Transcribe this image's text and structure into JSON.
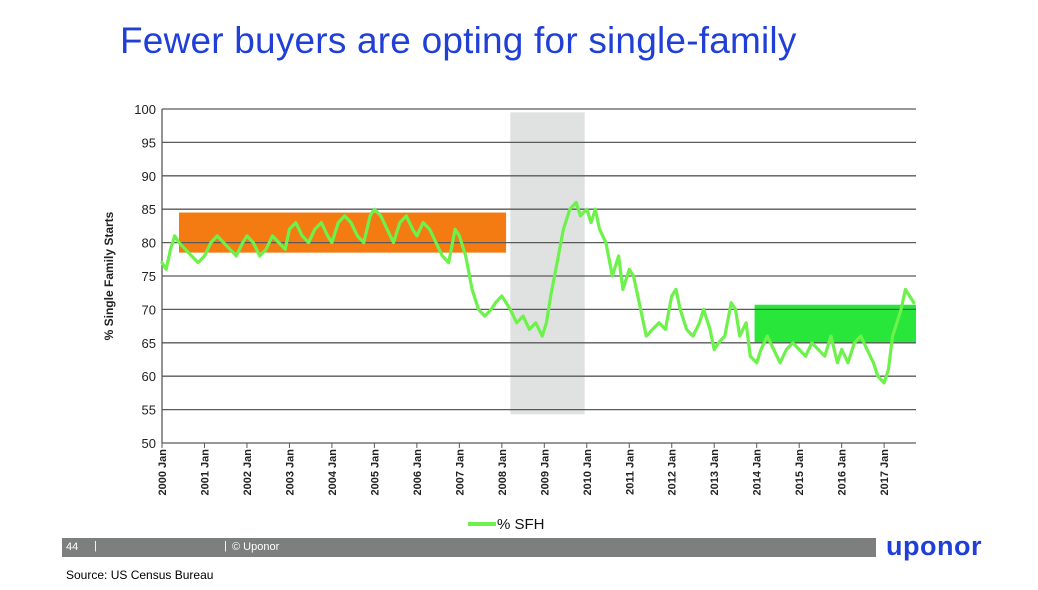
{
  "slide": {
    "title": "Fewer buyers are opting for single-family",
    "page_number": "44",
    "separator": "|",
    "copyright": "© Uponor",
    "logo_text": "uponor",
    "source": "Source: US Census Bureau"
  },
  "colors": {
    "title": "#1f3fd6",
    "line": "#6cf24a",
    "orange_band": "#f47b12",
    "green_band": "#28e63a",
    "gray_band": "#e0e2e1",
    "grid": "#5a5a5a",
    "footer": "#7c7f7e"
  },
  "chart_data": {
    "type": "line",
    "ylabel": "% Single Family Starts",
    "ylim": [
      50,
      100
    ],
    "yticks": [
      "50",
      "55",
      "60",
      "65",
      "70",
      "75",
      "80",
      "85",
      "90",
      "95",
      "100"
    ],
    "xlim": [
      2000.0,
      2017.75
    ],
    "xtick_labels": [
      "2000 Jan",
      "2001 Jan",
      "2002 Jan",
      "2003 Jan",
      "2004 Jan",
      "2005 Jan",
      "2006 Jan",
      "2007 Jan",
      "2008 Jan",
      "2009 Jan",
      "2010 Jan",
      "2011 Jan",
      "2012 Jan",
      "2013 Jan",
      "2014 Jan",
      "2015 Jan",
      "2016 Jan",
      "2017 Jan"
    ],
    "grid": true,
    "legend": {
      "position": "bottom",
      "entries": [
        "% SFH"
      ]
    },
    "bands": [
      {
        "type": "range",
        "x": [
          2000.4,
          2008.1
        ],
        "y": [
          78.5,
          84.5
        ],
        "color": "orange"
      },
      {
        "type": "range",
        "x": [
          2008.2,
          2009.95
        ],
        "y": [
          54.3,
          99.5
        ],
        "color": "gray"
      },
      {
        "type": "range",
        "x": [
          2013.95,
          2017.75
        ],
        "y": [
          65,
          70.7
        ],
        "color": "green"
      }
    ],
    "series": [
      {
        "name": "% SFH",
        "x": [
          2000.0,
          2000.1,
          2000.2,
          2000.3,
          2000.4,
          2000.55,
          2000.7,
          2000.85,
          2001.0,
          2001.15,
          2001.3,
          2001.45,
          2001.6,
          2001.75,
          2001.9,
          2002.0,
          2002.15,
          2002.3,
          2002.45,
          2002.6,
          2002.75,
          2002.9,
          2003.0,
          2003.15,
          2003.3,
          2003.45,
          2003.6,
          2003.75,
          2003.9,
          2004.0,
          2004.15,
          2004.3,
          2004.45,
          2004.6,
          2004.75,
          2004.9,
          2005.0,
          2005.15,
          2005.3,
          2005.45,
          2005.6,
          2005.75,
          2005.9,
          2006.0,
          2006.15,
          2006.3,
          2006.45,
          2006.6,
          2006.75,
          2006.9,
          2007.0,
          2007.15,
          2007.3,
          2007.45,
          2007.6,
          2007.75,
          2007.85,
          2008.0,
          2008.1,
          2008.2,
          2008.35,
          2008.5,
          2008.65,
          2008.8,
          2008.95,
          2009.05,
          2009.15,
          2009.3,
          2009.45,
          2009.6,
          2009.75,
          2009.85,
          2010.0,
          2010.1,
          2010.2,
          2010.3,
          2010.45,
          2010.6,
          2010.75,
          2010.85,
          2011.0,
          2011.1,
          2011.2,
          2011.3,
          2011.4,
          2011.55,
          2011.7,
          2011.85,
          2012.0,
          2012.1,
          2012.2,
          2012.35,
          2012.5,
          2012.65,
          2012.75,
          2012.9,
          2013.0,
          2013.1,
          2013.25,
          2013.4,
          2013.5,
          2013.6,
          2013.75,
          2013.85,
          2014.0,
          2014.1,
          2014.25,
          2014.4,
          2014.55,
          2014.7,
          2014.85,
          2015.0,
          2015.15,
          2015.3,
          2015.45,
          2015.6,
          2015.75,
          2015.9,
          2016.0,
          2016.15,
          2016.3,
          2016.45,
          2016.6,
          2016.75,
          2016.85,
          2017.0,
          2017.1,
          2017.2,
          2017.3,
          2017.4,
          2017.5,
          2017.6,
          2017.7
        ],
        "values": [
          77,
          76,
          79,
          81,
          80,
          79,
          78,
          77,
          78,
          80,
          81,
          80,
          79,
          78,
          80,
          81,
          80,
          78,
          79,
          81,
          80,
          79,
          82,
          83,
          81,
          80,
          82,
          83,
          81,
          80,
          83,
          84,
          83,
          81,
          80,
          84,
          85,
          84,
          82,
          80,
          83,
          84,
          82,
          81,
          83,
          82,
          80,
          78,
          77,
          82,
          81,
          78,
          73,
          70,
          69,
          70,
          71,
          72,
          71,
          70,
          68,
          69,
          67,
          68,
          66,
          68,
          72,
          77,
          82,
          85,
          86,
          84,
          85,
          83,
          85,
          82,
          80,
          75,
          78,
          73,
          76,
          75,
          72,
          69,
          66,
          67,
          68,
          67,
          72,
          73,
          70,
          67,
          66,
          68,
          70,
          67,
          64,
          65,
          66,
          71,
          70,
          66,
          68,
          63,
          62,
          64,
          66,
          64,
          62,
          64,
          65,
          64,
          63,
          65,
          64,
          63,
          66,
          62,
          64,
          62,
          65,
          66,
          64,
          62,
          60,
          59,
          61,
          66,
          68,
          70,
          73,
          72,
          71
        ]
      }
    ]
  }
}
